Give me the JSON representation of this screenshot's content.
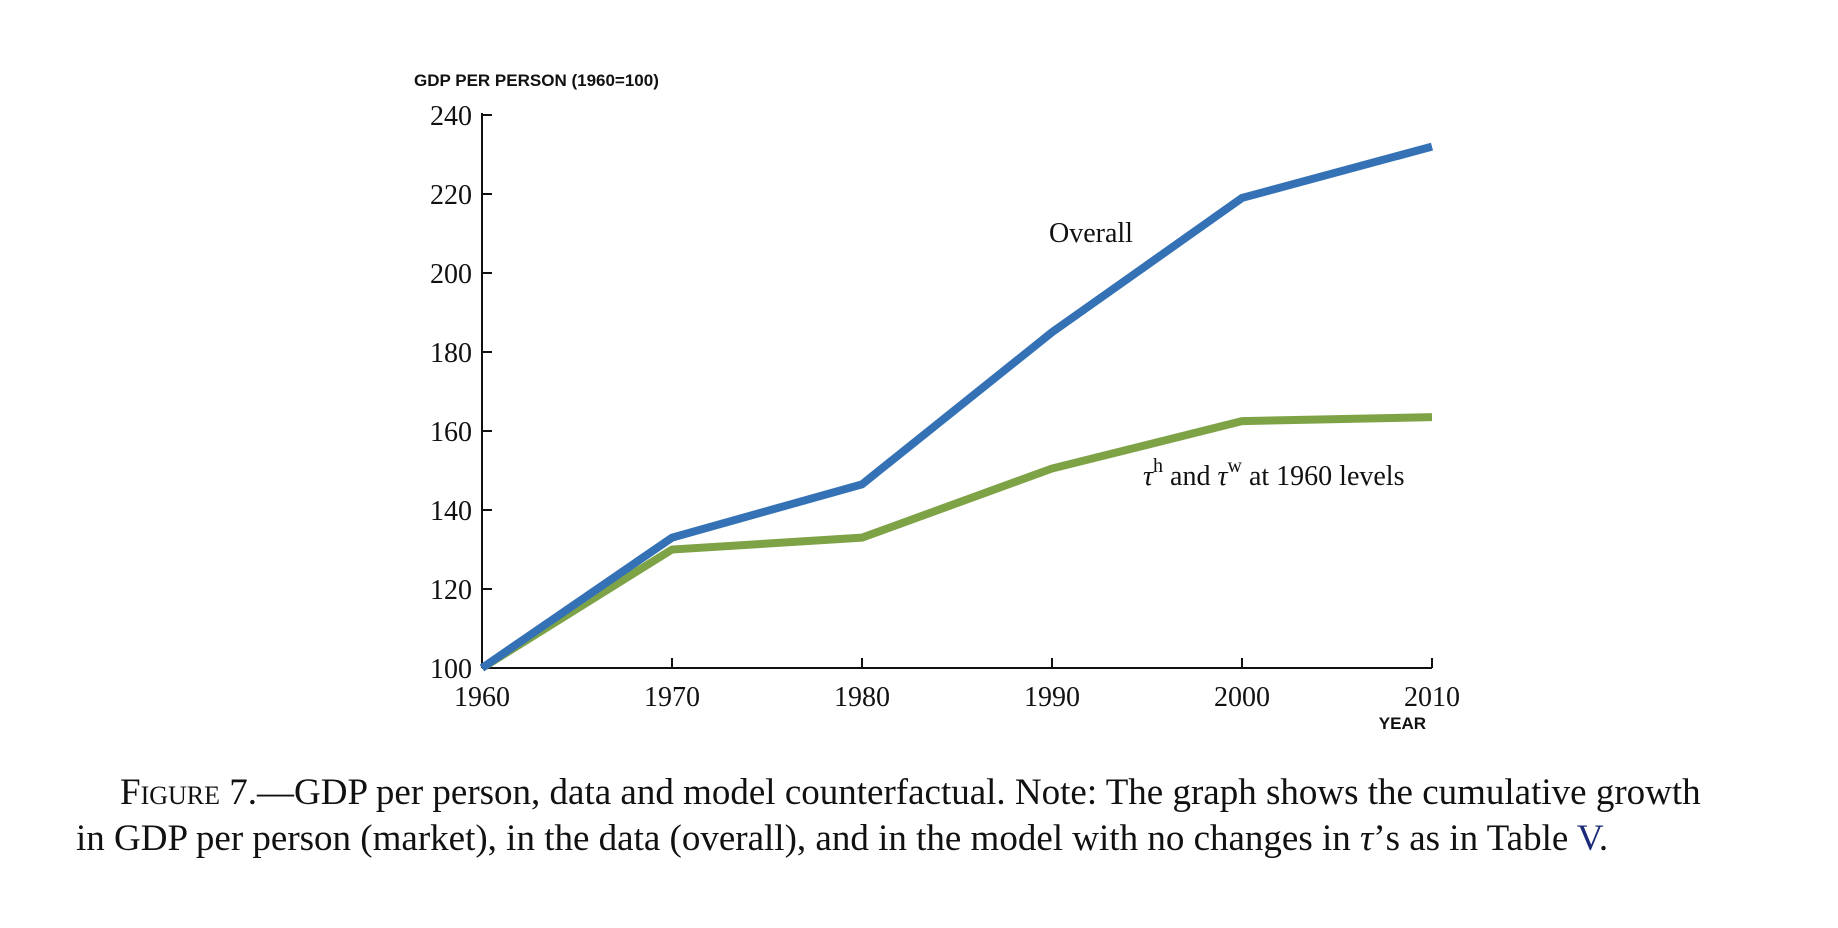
{
  "chart_data": {
    "type": "line",
    "ylabel": "GDP PER PERSON (1960=100)",
    "xlabel": "YEAR",
    "x": [
      1960,
      1970,
      1980,
      1990,
      2000,
      2010
    ],
    "xlim": [
      1960,
      2010
    ],
    "ylim": [
      100,
      240
    ],
    "yticks": [
      100,
      120,
      140,
      160,
      180,
      200,
      220,
      240
    ],
    "xticks": [
      1960,
      1970,
      1980,
      1990,
      2000,
      2010
    ],
    "grid": false,
    "series": [
      {
        "name": "Overall",
        "color": "#3572b5",
        "values": [
          100,
          133,
          146.5,
          185,
          219,
          232
        ]
      },
      {
        "name": "τh and τw at 1960 levels",
        "color": "#7ea346",
        "values": [
          100,
          130,
          133,
          150.5,
          162.5,
          163.5
        ]
      }
    ],
    "annotations": {
      "overall": "Overall",
      "tau1": "τ",
      "sup_h": "h",
      "and": " and ",
      "tau2": "τ",
      "sup_w": "w",
      "rest": " at 1960 levels"
    }
  },
  "caption": {
    "label": "Figure",
    "number": " 7.",
    "line1": "—GDP per person, data and model counterfactual. Note: The graph shows the cumulative growth",
    "line2a": "in GDP per person (market), in the data (overall), and in the model with no changes in ",
    "tau": "τ",
    "line2b": "’s as in Table ",
    "table_ref": "V",
    "period": "."
  }
}
